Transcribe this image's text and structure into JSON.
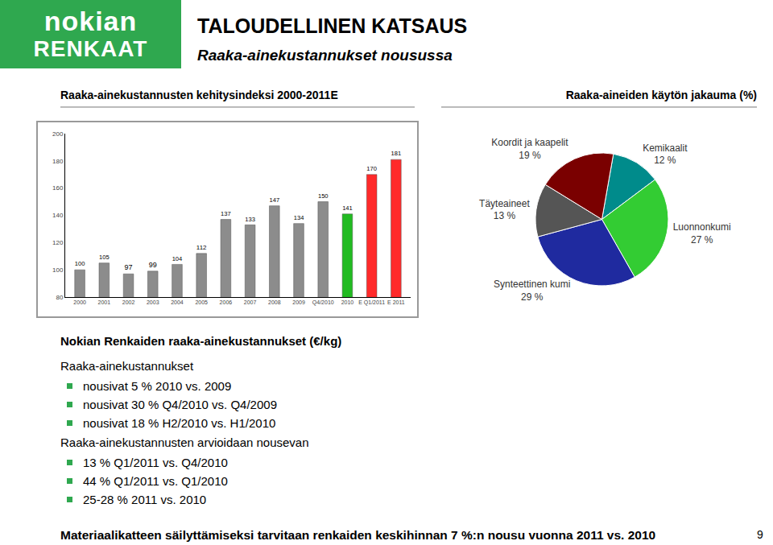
{
  "header": {
    "logo": [
      "nokian",
      "RENKAAT"
    ],
    "title": "TALOUDELLINEN KATSAUS",
    "subtitle": "Raaka-ainekustannukset nousussa"
  },
  "chart_data": [
    {
      "type": "bar",
      "title": "Raaka-ainekustannusten kehitysindeksi 2000-2011E",
      "categories": [
        "2000",
        "2001",
        "2002",
        "2003",
        "2004",
        "2005",
        "2006",
        "2007",
        "2008",
        "2009",
        "Q4/2010",
        "2010",
        "E Q1/2011",
        "E 2011"
      ],
      "values": [
        100,
        105,
        97,
        99,
        104,
        112,
        137,
        133,
        147,
        134,
        150,
        141,
        170,
        181
      ],
      "colors": [
        "#8c8c8c",
        "#8c8c8c",
        "#8c8c8c",
        "#8c8c8c",
        "#8c8c8c",
        "#8c8c8c",
        "#8c8c8c",
        "#8c8c8c",
        "#8c8c8c",
        "#8c8c8c",
        "#8c8c8c",
        "#22bb22",
        "#ff2a2a",
        "#ff2a2a"
      ],
      "ylim": [
        80,
        200
      ],
      "yticks": [
        80,
        100,
        120,
        140,
        160,
        180,
        200
      ],
      "grid": false,
      "data_labels": true
    },
    {
      "type": "pie",
      "title": "Raaka-aineiden käytön jakauma (%)",
      "categories": [
        "Kemikaalit",
        "Luonnonkumi",
        "Synteettinen kumi",
        "Täyteaineet",
        "Koordit ja kaapelit"
      ],
      "values": [
        12,
        27,
        29,
        13,
        19
      ],
      "value_labels": [
        "12 %",
        "27 %",
        "29 %",
        "13 %",
        "19 %"
      ],
      "colors": [
        "#008b8b",
        "#33cc33",
        "#1f2a9f",
        "#555555",
        "#7a0000"
      ],
      "data_labels": true
    }
  ],
  "section": {
    "heading": "Nokian Renkaiden raaka-ainekustannukset (€/kg)",
    "groups": [
      {
        "title": "Raaka-ainekustannukset",
        "items": [
          "nousivat 5 % 2010 vs. 2009",
          "nousivat 30 % Q4/2010 vs. Q4/2009",
          "nousivat 18 % H2/2010 vs. H1/2010"
        ]
      },
      {
        "title": "Raaka-ainekustannusten arvioidaan nousevan",
        "items": [
          "13 % Q1/2011 vs. Q4/2010",
          "44 % Q1/2011 vs. Q1/2010",
          "25-28 % 2011 vs. 2010"
        ]
      }
    ]
  },
  "footer": "Materiaalikatteen säilyttämiseksi tarvitaan renkaiden keskihinnan 7 %:n nousu vuonna 2011 vs. 2010",
  "page": "9"
}
